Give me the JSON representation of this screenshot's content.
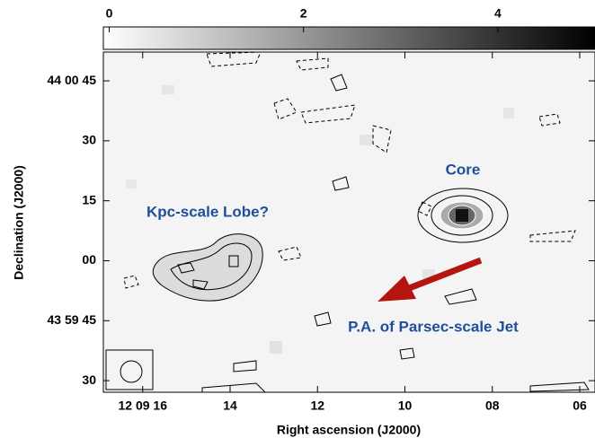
{
  "chart_data": {
    "type": "image",
    "xlabel": "Right ascension (J2000)",
    "ylabel": "Declination (J2000)",
    "xlim": [
      16.9,
      5.65
    ],
    "xticks": [
      {
        "value": 16,
        "label": "12 09 16"
      },
      14,
      12,
      10,
      {
        "value": 8,
        "label": "08"
      },
      {
        "value": 6,
        "label": "06"
      }
    ],
    "ylim": [
      -32.9,
      52.2
    ],
    "yticks": [
      {
        "value": 45,
        "label": "44 00 45"
      },
      30,
      15,
      {
        "value": 0,
        "label": "00"
      },
      {
        "value": -15,
        "label": "43 59 45"
      },
      {
        "value": -30,
        "label": "30"
      }
    ],
    "colorbar": {
      "lim": [
        -0.06,
        5
      ],
      "ticks": [
        0,
        2,
        4
      ]
    },
    "annotations": [
      "Core",
      "Kpc-scale Lobe?",
      "P.A. of Parsec-scale Jet"
    ]
  }
}
